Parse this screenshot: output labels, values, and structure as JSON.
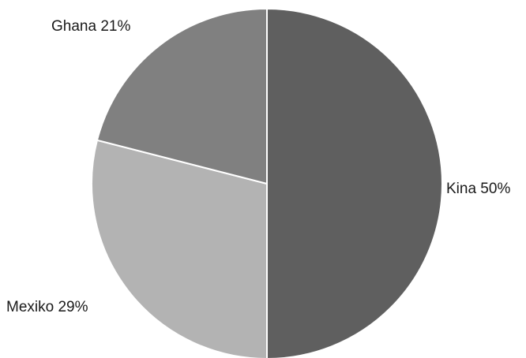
{
  "chart_data": {
    "type": "pie",
    "start_angle_deg": 0,
    "direction": "clockwise",
    "slices": [
      {
        "label": "Kina 50%",
        "name": "Kina",
        "value": 50,
        "color": "#5f5f5f"
      },
      {
        "label": "Mexiko 29%",
        "name": "Mexiko",
        "value": 29,
        "color": "#b3b3b3"
      },
      {
        "label": "Ghana 21%",
        "name": "Ghana",
        "value": 21,
        "color": "#808080"
      }
    ],
    "legend": "none",
    "grid": false
  }
}
